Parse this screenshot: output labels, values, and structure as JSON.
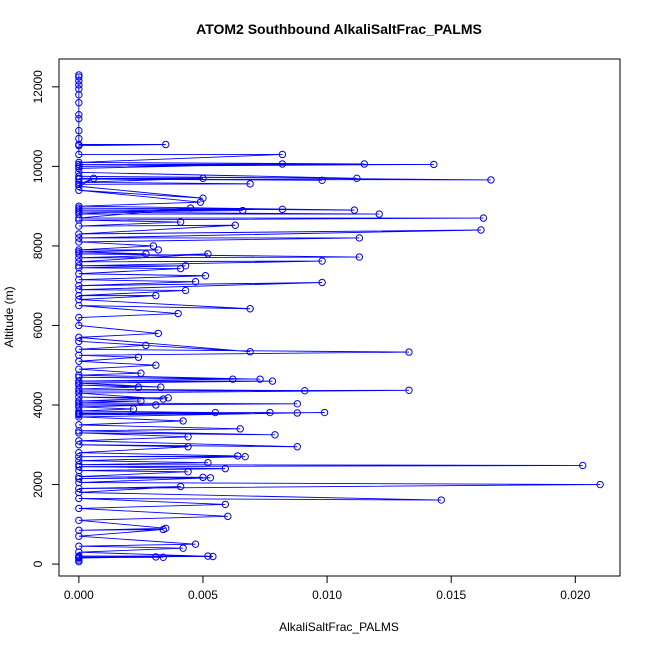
{
  "chart_data": {
    "type": "line",
    "title": "ATOM2 Southbound AlkaliSaltFrac_PALMS",
    "xlabel": "AlkaliSaltFrac_PALMS",
    "ylabel": "Altitude (m)",
    "xlim": [
      -0.0008,
      0.0218
    ],
    "ylim": [
      -300,
      12700
    ],
    "xticks": [
      0.0,
      0.005,
      0.01,
      0.015,
      0.02
    ],
    "xtick_labels": [
      "0.000",
      "0.005",
      "0.010",
      "0.015",
      "0.020"
    ],
    "yticks": [
      0,
      2000,
      4000,
      6000,
      8000,
      10000,
      12000
    ],
    "ytick_labels": [
      "0",
      "2000",
      "4000",
      "6000",
      "8000",
      "10000",
      "12000"
    ],
    "grid": false,
    "series": [
      {
        "color": "#0000ff",
        "marker": "open-circle",
        "points": [
          [
            0,
            12300
          ],
          [
            0,
            12250
          ],
          [
            0,
            12150
          ],
          [
            0,
            12050
          ],
          [
            0,
            11950
          ],
          [
            0,
            11800
          ],
          [
            0,
            11600
          ],
          [
            0,
            11300
          ],
          [
            0,
            11200
          ],
          [
            0,
            10900
          ],
          [
            0,
            10700
          ],
          [
            0,
            10550
          ],
          [
            0.0035,
            10550
          ],
          [
            0,
            10520
          ],
          [
            0,
            10300
          ],
          [
            0.0082,
            10300
          ],
          [
            0,
            10100
          ],
          [
            0.0115,
            10060
          ],
          [
            0,
            10050
          ],
          [
            0.0143,
            10050
          ],
          [
            0,
            10000
          ],
          [
            0.0082,
            10060
          ],
          [
            0,
            9950
          ],
          [
            0,
            9850
          ],
          [
            0.0112,
            9700
          ],
          [
            0,
            9750
          ],
          [
            0.0166,
            9660
          ],
          [
            0,
            9680
          ],
          [
            0.0098,
            9650
          ],
          [
            0,
            9700
          ],
          [
            0.005,
            9700
          ],
          [
            0,
            9600
          ],
          [
            0.0069,
            9560
          ],
          [
            0,
            9550
          ],
          [
            0.0006,
            9700
          ],
          [
            0,
            9500
          ],
          [
            0.005,
            9200
          ],
          [
            0,
            9400
          ],
          [
            0.0049,
            9100
          ],
          [
            0,
            9000
          ],
          [
            0.0111,
            8900
          ],
          [
            0,
            8950
          ],
          [
            0.0082,
            8920
          ],
          [
            0,
            8900
          ],
          [
            0.0066,
            8890
          ],
          [
            0,
            8850
          ],
          [
            0.0121,
            8800
          ],
          [
            0,
            8800
          ],
          [
            0.0045,
            8950
          ],
          [
            0,
            8700
          ],
          [
            0.0163,
            8700
          ],
          [
            0,
            8650
          ],
          [
            0.0041,
            8600
          ],
          [
            0,
            8500
          ],
          [
            0.0063,
            8520
          ],
          [
            0,
            8300
          ],
          [
            0.0162,
            8400
          ],
          [
            0,
            8200
          ],
          [
            0.0113,
            8200
          ],
          [
            0,
            8100
          ],
          [
            0.003,
            8000
          ],
          [
            0,
            7900
          ],
          [
            0.0032,
            7900
          ],
          [
            0,
            7850
          ],
          [
            0.0027,
            7800
          ],
          [
            0,
            7800
          ],
          [
            0.0113,
            7720
          ],
          [
            0,
            7700
          ],
          [
            0.0052,
            7800
          ],
          [
            0,
            7600
          ],
          [
            0.0098,
            7620
          ],
          [
            0,
            7500
          ],
          [
            0.0043,
            7500
          ],
          [
            0,
            7450
          ],
          [
            0.0041,
            7430
          ],
          [
            0,
            7300
          ],
          [
            0.0051,
            7250
          ],
          [
            0,
            7150
          ],
          [
            0.0047,
            7100
          ],
          [
            0,
            7000
          ],
          [
            0.0098,
            7080
          ],
          [
            0,
            6900
          ],
          [
            0.0043,
            6880
          ],
          [
            0,
            6750
          ],
          [
            0.0031,
            6750
          ],
          [
            0,
            6650
          ],
          [
            0.0069,
            6420
          ],
          [
            0,
            6500
          ],
          [
            0.004,
            6300
          ],
          [
            0,
            6200
          ],
          [
            0,
            6000
          ],
          [
            0.0032,
            5800
          ],
          [
            0,
            5700
          ],
          [
            0.0069,
            5340
          ],
          [
            0,
            5600
          ],
          [
            0.0027,
            5500
          ],
          [
            0,
            5400
          ],
          [
            0.0133,
            5330
          ],
          [
            0,
            5250
          ],
          [
            0.0024,
            5200
          ],
          [
            0,
            5100
          ],
          [
            0.0031,
            5000
          ],
          [
            0,
            4900
          ],
          [
            0.0025,
            4800
          ],
          [
            0,
            4750
          ],
          [
            0.0073,
            4650
          ],
          [
            0,
            4700
          ],
          [
            0.0062,
            4650
          ],
          [
            0,
            4600
          ],
          [
            0.0078,
            4600
          ],
          [
            0,
            4550
          ],
          [
            0.0033,
            4450
          ],
          [
            0,
            4500
          ],
          [
            0.0024,
            4450
          ],
          [
            0,
            4400
          ],
          [
            0.0091,
            4360
          ],
          [
            0,
            4350
          ],
          [
            0.0133,
            4370
          ],
          [
            0,
            4300
          ],
          [
            0.0034,
            4150
          ],
          [
            0,
            4200
          ],
          [
            0.0036,
            4180
          ],
          [
            0,
            4100
          ],
          [
            0.0025,
            4100
          ],
          [
            0,
            4050
          ],
          [
            0.0088,
            4030
          ],
          [
            0,
            4000
          ],
          [
            0.0031,
            4000
          ],
          [
            0,
            3950
          ],
          [
            0.0022,
            3900
          ],
          [
            0,
            3850
          ],
          [
            0.0055,
            3810
          ],
          [
            0,
            3800
          ],
          [
            0.0077,
            3810
          ],
          [
            0,
            3780
          ],
          [
            0.0099,
            3810
          ],
          [
            0,
            3750
          ],
          [
            0.0088,
            3800
          ],
          [
            0,
            3700
          ],
          [
            0.0042,
            3600
          ],
          [
            0,
            3500
          ],
          [
            0.0065,
            3400
          ],
          [
            0,
            3350
          ],
          [
            0.0079,
            3250
          ],
          [
            0,
            3300
          ],
          [
            0.0044,
            3200
          ],
          [
            0,
            3100
          ],
          [
            0.0088,
            2950
          ],
          [
            0,
            3000
          ],
          [
            0.0044,
            2950
          ],
          [
            0,
            2800
          ],
          [
            0.0064,
            2720
          ],
          [
            0,
            2700
          ],
          [
            0.0067,
            2700
          ],
          [
            0,
            2600
          ],
          [
            0.0052,
            2550
          ],
          [
            0,
            2500
          ],
          [
            0.0203,
            2480
          ],
          [
            0,
            2450
          ],
          [
            0.0059,
            2400
          ],
          [
            0,
            2350
          ],
          [
            0.0044,
            2320
          ],
          [
            0,
            2200
          ],
          [
            0.005,
            2180
          ],
          [
            0,
            2150
          ],
          [
            0.0053,
            2170
          ],
          [
            0,
            2050
          ],
          [
            0.021,
            2000
          ],
          [
            0,
            1900
          ],
          [
            0.0041,
            1950
          ],
          [
            0,
            1800
          ],
          [
            0.0146,
            1610
          ],
          [
            0,
            1650
          ],
          [
            0.0059,
            1500
          ],
          [
            0,
            1400
          ],
          [
            0.006,
            1200
          ],
          [
            0,
            1100
          ],
          [
            0.0035,
            900
          ],
          [
            0,
            850
          ],
          [
            0.0034,
            870
          ],
          [
            0,
            700
          ],
          [
            0.0047,
            500
          ],
          [
            0,
            450
          ],
          [
            0.0042,
            400
          ],
          [
            0,
            300
          ],
          [
            0.0054,
            190
          ],
          [
            0,
            200
          ],
          [
            0.0052,
            200
          ],
          [
            0,
            160
          ],
          [
            0.0034,
            170
          ],
          [
            0,
            180
          ],
          [
            0.0031,
            180
          ],
          [
            0,
            150
          ],
          [
            0,
            100
          ],
          [
            0,
            60
          ]
        ]
      }
    ]
  }
}
